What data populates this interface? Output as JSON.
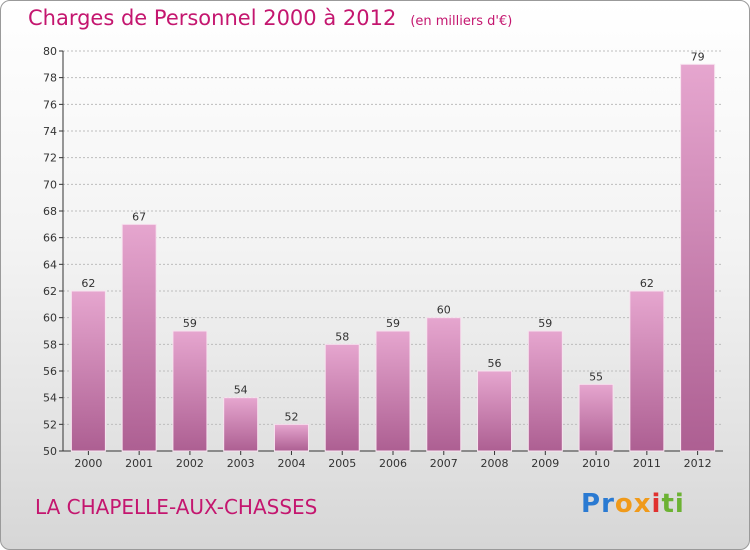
{
  "title": "Charges de Personnel 2000 à 2012",
  "subtitle": "(en milliers d'€)",
  "commune": "LA CHAPELLE-AUX-CHASSES",
  "logo": {
    "text": "Proxiti",
    "letters": [
      {
        "char": "P",
        "color": "#2a7ad2"
      },
      {
        "char": "r",
        "color": "#2a7ad2"
      },
      {
        "char": "o",
        "color": "#f09a1a"
      },
      {
        "char": "x",
        "color": "#f09a1a"
      },
      {
        "char": "i",
        "color": "#e0312f"
      },
      {
        "char": "t",
        "color": "#6cb233"
      },
      {
        "char": "i",
        "color": "#6cb233"
      }
    ]
  },
  "colors": {
    "title": "#c4166f",
    "bar_light": "#e6a6cf",
    "bar_dark": "#ad5f92",
    "bar_edge": "#f7e3ef",
    "grid": "#bdbdbd",
    "axis": "#333333"
  },
  "chart_data": {
    "type": "bar",
    "categories": [
      "2000",
      "2001",
      "2002",
      "2003",
      "2004",
      "2005",
      "2006",
      "2007",
      "2008",
      "2009",
      "2010",
      "2011",
      "2012"
    ],
    "values": [
      62,
      67,
      59,
      54,
      52,
      58,
      59,
      60,
      56,
      59,
      55,
      62,
      79
    ],
    "title": "Charges de Personnel 2000 à 2012",
    "ylim": [
      50,
      80
    ],
    "yticks": [
      50,
      52,
      54,
      56,
      58,
      60,
      62,
      64,
      66,
      68,
      70,
      72,
      74,
      76,
      78,
      80
    ],
    "grid": true,
    "data_labels": true
  }
}
